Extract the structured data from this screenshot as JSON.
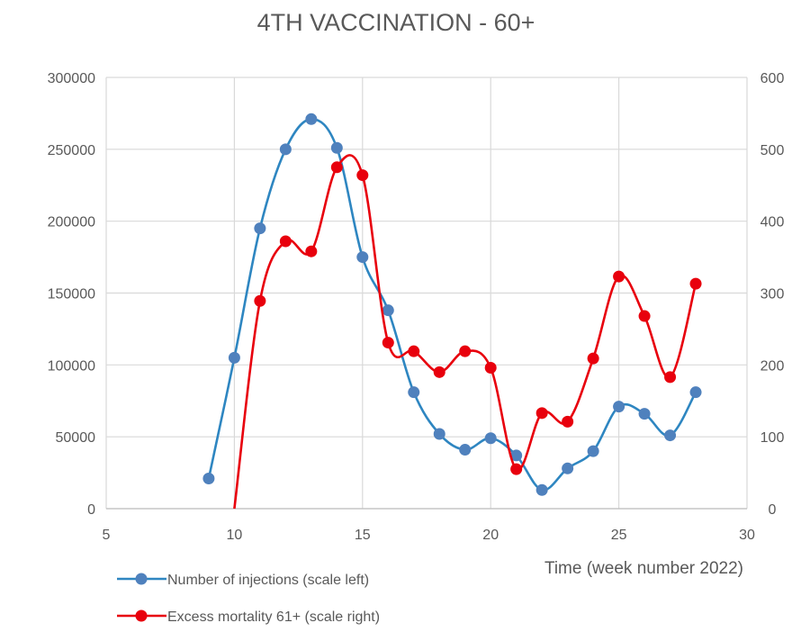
{
  "chart_data": {
    "type": "line",
    "title": "4TH VACCINATION - 60+",
    "xlabel": "Time (week number 2022)",
    "ylabel": "",
    "y2label": "",
    "xlim": [
      5,
      30
    ],
    "xticks": [
      5,
      10,
      15,
      20,
      25,
      30
    ],
    "ylim": [
      0,
      300000
    ],
    "yticks": [
      0,
      50000,
      100000,
      150000,
      200000,
      250000,
      300000
    ],
    "y2lim": [
      0,
      600
    ],
    "y2ticks": [
      0,
      100,
      200,
      300,
      400,
      500,
      600
    ],
    "grid": true,
    "legend_position": "bottom-left",
    "series": [
      {
        "name": "Number of injections (scale left)",
        "axis": "left",
        "color": "#2e86c1",
        "marker_color": "#4f81bd",
        "x": [
          9,
          10,
          11,
          12,
          13,
          14,
          15,
          16,
          17,
          18,
          19,
          20,
          21,
          22,
          23,
          24,
          25,
          26,
          27,
          28
        ],
        "y": [
          21000,
          105000,
          195000,
          250000,
          271000,
          251000,
          175000,
          138000,
          81000,
          52000,
          41000,
          49000,
          37000,
          13000,
          28000,
          40000,
          71000,
          66000,
          51000,
          81000
        ]
      },
      {
        "name": "Excess mortality 61+ (scale right)",
        "axis": "right",
        "color": "#e8000d",
        "marker_color": "#e8000d",
        "x": [
          10,
          11,
          12,
          13,
          14,
          15,
          16,
          17,
          18,
          19,
          20,
          21,
          22,
          23,
          24,
          25,
          26,
          27,
          28
        ],
        "y": [
          0,
          289,
          372,
          358,
          475,
          464,
          231,
          219,
          190,
          219,
          196,
          55,
          133,
          121,
          209,
          323,
          268,
          183,
          313
        ]
      }
    ]
  }
}
